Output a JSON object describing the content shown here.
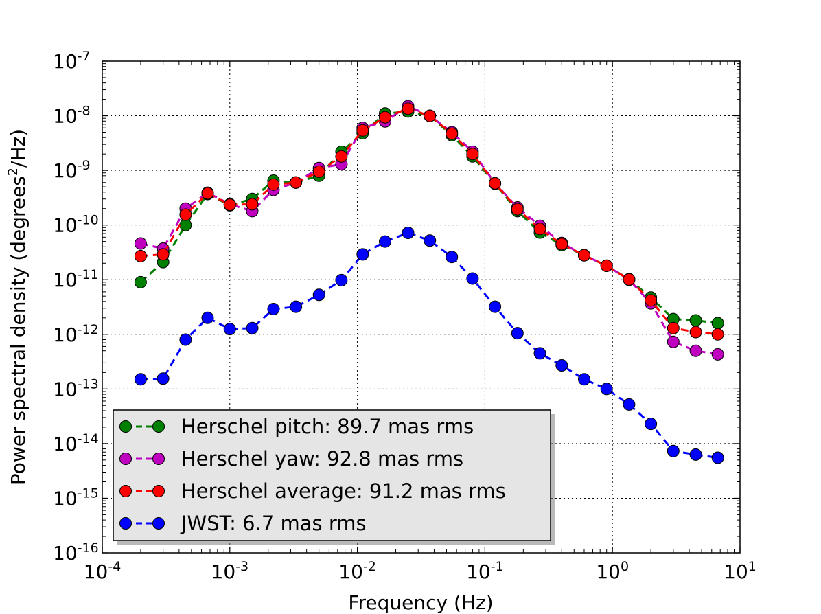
{
  "chart_data": {
    "type": "line",
    "title": "",
    "xlabel": "Frequency (Hz)",
    "ylabel_main": "Power spectral density (degrees",
    "ylabel_sup": "2",
    "ylabel_tail": "/Hz)",
    "xscale": "log",
    "yscale": "log",
    "xlim": [
      0.0001,
      10
    ],
    "ylim": [
      1e-16,
      1e-07
    ],
    "grid": true,
    "legend_position": "lower-left",
    "x_ticks": [
      {
        "base": "10",
        "exp": "-4",
        "value": 0.0001
      },
      {
        "base": "10",
        "exp": "-3",
        "value": 0.001
      },
      {
        "base": "10",
        "exp": "-2",
        "value": 0.01
      },
      {
        "base": "10",
        "exp": "-1",
        "value": 0.1
      },
      {
        "base": "10",
        "exp": "0",
        "value": 1
      },
      {
        "base": "10",
        "exp": "1",
        "value": 10
      }
    ],
    "y_ticks": [
      {
        "base": "10",
        "exp": "-7",
        "value": 1e-07
      },
      {
        "base": "10",
        "exp": "-8",
        "value": 1e-08
      },
      {
        "base": "10",
        "exp": "-9",
        "value": 1e-09
      },
      {
        "base": "10",
        "exp": "-10",
        "value": 1e-10
      },
      {
        "base": "10",
        "exp": "-11",
        "value": 1e-11
      },
      {
        "base": "10",
        "exp": "-12",
        "value": 1e-12
      },
      {
        "base": "10",
        "exp": "-13",
        "value": 1e-13
      },
      {
        "base": "10",
        "exp": "-14",
        "value": 1e-14
      },
      {
        "base": "10",
        "exp": "-15",
        "value": 1e-15
      },
      {
        "base": "10",
        "exp": "-16",
        "value": 1e-16
      }
    ],
    "x": [
      0.0002,
      0.0003,
      0.00045,
      0.00067,
      0.001,
      0.0015,
      0.0022,
      0.0033,
      0.005,
      0.0075,
      0.011,
      0.0165,
      0.025,
      0.037,
      0.055,
      0.08,
      0.12,
      0.18,
      0.27,
      0.4,
      0.6,
      0.9,
      1.35,
      2.0,
      3.0,
      4.5,
      6.7
    ],
    "series": [
      {
        "name": "Herschel pitch: 89.7 mas rms",
        "color": "#008000",
        "values": [
          9e-12,
          2.1e-11,
          1e-10,
          3.7e-10,
          2.3e-10,
          3e-10,
          6.5e-10,
          6e-10,
          8e-10,
          2.2e-09,
          4.8e-09,
          1.1e-08,
          1.2e-08,
          1e-08,
          4.4e-09,
          1.8e-09,
          5.7e-10,
          1.8e-10,
          7.3e-11,
          4.3e-11,
          2.8e-11,
          1.8e-11,
          1.02e-11,
          4.7e-12,
          1.9e-12,
          1.8e-12,
          1.6e-12
        ]
      },
      {
        "name": "Herschel yaw: 92.8 mas rms",
        "color": "#bf00bf",
        "values": [
          4.6e-11,
          3.7e-11,
          2e-10,
          3.9e-10,
          2.4e-10,
          1.8e-10,
          4.4e-10,
          6e-10,
          1.1e-09,
          1.3e-09,
          6e-09,
          7.9e-09,
          1.5e-08,
          1e-08,
          5e-09,
          2.2e-09,
          5.8e-10,
          2.1e-10,
          9.7e-11,
          4.7e-11,
          2.8e-11,
          1.8e-11,
          1e-11,
          3.7e-12,
          7.3e-13,
          5e-13,
          4.3e-13
        ]
      },
      {
        "name": "Herschel average: 91.2 mas rms",
        "color": "#ff0000",
        "values": [
          2.7e-11,
          2.9e-11,
          1.55e-10,
          3.8e-10,
          2.35e-10,
          2.4e-10,
          5.5e-10,
          6e-10,
          9.5e-10,
          1.8e-09,
          5.4e-09,
          9.4e-09,
          1.35e-08,
          1e-08,
          4.7e-09,
          2e-09,
          5.8e-10,
          1.95e-10,
          8.5e-11,
          4.5e-11,
          2.8e-11,
          1.8e-11,
          1.01e-11,
          4.2e-12,
          1.3e-12,
          1.1e-12,
          1e-12
        ]
      },
      {
        "name": "JWST: 6.7 mas rms",
        "color": "#0000ff",
        "values": [
          1.5e-13,
          1.55e-13,
          8e-13,
          2e-12,
          1.25e-12,
          1.3e-12,
          2.9e-12,
          3.2e-12,
          5.3e-12,
          9.8e-12,
          2.9e-11,
          5e-11,
          7.2e-11,
          5.2e-11,
          2.6e-11,
          1.05e-11,
          3.2e-12,
          1.05e-12,
          4.5e-13,
          2.7e-13,
          1.5e-13,
          1e-13,
          5.2e-14,
          2.3e-14,
          7.3e-15,
          6.3e-15,
          5.5e-15
        ]
      }
    ]
  }
}
